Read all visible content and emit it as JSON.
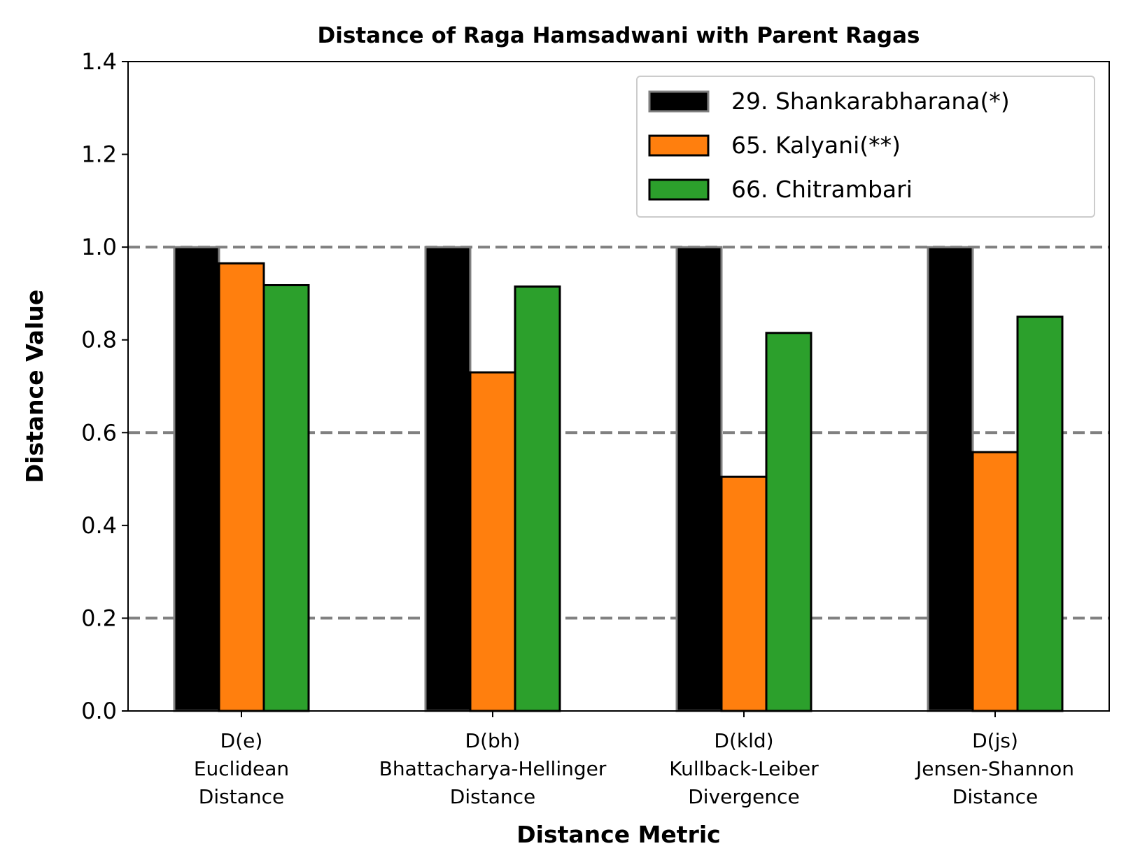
{
  "chart_data": {
    "type": "bar",
    "title": "Distance of Raga Hamsadwani with Parent Ragas",
    "xlabel": "Distance Metric",
    "ylabel": "Distance Value",
    "ylim": [
      0,
      1.4
    ],
    "yticks": [
      "0.0",
      "0.2",
      "0.4",
      "0.6",
      "0.8",
      "1.0",
      "1.2",
      "1.4"
    ],
    "gridlines_dashed_at": [
      0.2,
      0.6,
      1.0
    ],
    "categories": [
      [
        "D(e)",
        "Euclidean",
        "Distance"
      ],
      [
        "D(bh)",
        "Bhattacharya-Hellinger",
        "Distance"
      ],
      [
        "D(kld)",
        "Kullback-Leiber",
        "Divergence"
      ],
      [
        "D(js)",
        "Jensen-Shannon",
        "Distance"
      ]
    ],
    "series": [
      {
        "name": "29. Shankarabharana(*)",
        "color": "#000000",
        "edge": "#808080",
        "values": [
          1.0,
          1.0,
          1.0,
          1.0
        ]
      },
      {
        "name": "65. Kalyani(**)",
        "color": "#ff7f0e",
        "edge": "#000000",
        "values": [
          0.965,
          0.73,
          0.505,
          0.558
        ]
      },
      {
        "name": "66. Chitrambari",
        "color": "#2ca02c",
        "edge": "#000000",
        "values": [
          0.918,
          0.915,
          0.815,
          0.85
        ]
      }
    ],
    "legend_position": "top-right",
    "grid_color": "#808080"
  }
}
